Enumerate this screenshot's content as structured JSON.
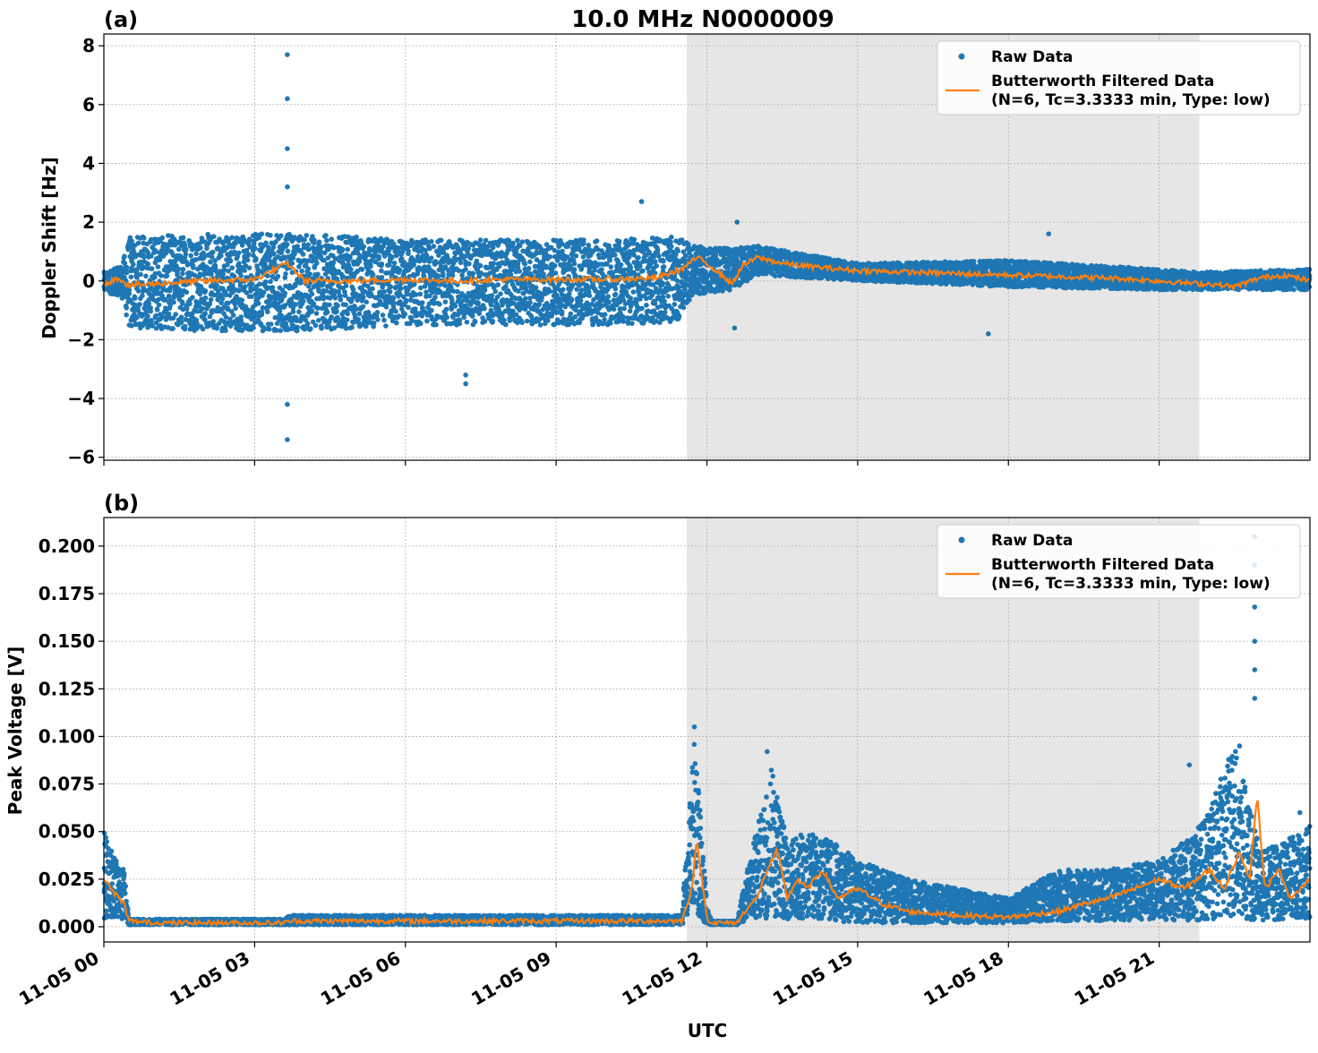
{
  "colors": {
    "raw": "#1f77b4",
    "filtered": "#ff7f0e",
    "shade": "#e6e6e6",
    "grid": "#b0b0b0"
  },
  "chart_data": [
    {
      "type": "scatter",
      "panel_label": "(a)",
      "title": "10.0 MHz N0000009",
      "ylabel": "Doppler Shift [Hz]",
      "xlabel": "",
      "x_unit": "hours UTC on 11-05",
      "xlim": [
        0,
        24
      ],
      "ylim": [
        -6.1,
        8.4
      ],
      "yticks": [
        -6,
        -4,
        -2,
        0,
        2,
        4,
        6,
        8
      ],
      "ytick_labels": [
        "−6",
        "−4",
        "−2",
        "0",
        "2",
        "4",
        "6",
        "8"
      ],
      "xticks": [
        0,
        3,
        6,
        9,
        12,
        15,
        18,
        21
      ],
      "grid": true,
      "shaded_interval": [
        11.6,
        21.8
      ],
      "legend_position": "top-right",
      "legend": [
        "Raw Data",
        "Butterworth Filtered Data",
        "(N=6, Tc=3.3333 min, Type: low)"
      ],
      "series": [
        {
          "name": "Raw Data",
          "style": "points",
          "envelope_x": [
            0,
            0.35,
            0.5,
            2,
            4,
            6,
            8,
            10,
            11.4,
            11.7,
            12.5,
            13,
            15,
            18,
            21,
            21.8,
            24
          ],
          "envelope_high": [
            0.3,
            0.5,
            1.5,
            1.6,
            1.6,
            1.4,
            1.4,
            1.4,
            1.5,
            1.2,
            1.1,
            1.2,
            0.6,
            0.7,
            0.4,
            0.3,
            0.4
          ],
          "envelope_low": [
            -0.4,
            -0.5,
            -1.6,
            -1.7,
            -1.7,
            -1.5,
            -1.5,
            -1.5,
            -1.4,
            -0.5,
            -0.3,
            0.2,
            0,
            -0.2,
            -0.3,
            -0.3,
            -0.3
          ],
          "spikes": [
            [
              3.65,
              7.7
            ],
            [
              3.65,
              6.2
            ],
            [
              3.65,
              4.5
            ],
            [
              3.65,
              3.2
            ],
            [
              3.65,
              -4.2
            ],
            [
              3.65,
              -5.4
            ],
            [
              7.2,
              -3.5
            ],
            [
              7.2,
              -3.2
            ],
            [
              12.6,
              2.0
            ],
            [
              18.8,
              1.6
            ],
            [
              17.6,
              -1.8
            ],
            [
              12.55,
              -1.6
            ],
            [
              10.7,
              2.7
            ]
          ]
        },
        {
          "name": "Butterworth Filtered Data",
          "style": "line",
          "x": [
            0,
            0.3,
            0.5,
            1,
            2,
            3,
            3.65,
            4,
            5,
            6,
            7,
            8,
            9,
            10,
            11,
            11.5,
            11.8,
            12,
            12.3,
            12.5,
            12.7,
            13,
            13.5,
            14,
            15,
            16,
            17,
            18,
            19,
            20,
            21,
            21.8,
            22,
            22.5,
            23,
            23.5,
            24
          ],
          "y": [
            -0.1,
            0.1,
            -0.15,
            -0.1,
            0,
            0.05,
            0.6,
            0,
            0,
            0.05,
            0,
            0.05,
            0.05,
            0.05,
            0.1,
            0.4,
            0.8,
            0.6,
            0.2,
            -0.1,
            0.5,
            0.8,
            0.6,
            0.5,
            0.35,
            0.3,
            0.25,
            0.2,
            0.15,
            0.1,
            0,
            -0.1,
            -0.1,
            -0.2,
            0.1,
            0.2,
            0
          ]
        }
      ]
    },
    {
      "type": "scatter",
      "panel_label": "(b)",
      "title": "",
      "ylabel": "Peak Voltage [V]",
      "xlabel": "UTC",
      "x_unit": "hours UTC on 11-05",
      "xlim": [
        0,
        24
      ],
      "ylim": [
        -0.008,
        0.215
      ],
      "yticks": [
        0,
        0.025,
        0.05,
        0.075,
        0.1,
        0.125,
        0.15,
        0.175,
        0.2
      ],
      "ytick_labels": [
        "0.000",
        "0.025",
        "0.050",
        "0.075",
        "0.100",
        "0.125",
        "0.150",
        "0.175",
        "0.200"
      ],
      "xticks": [
        0,
        3,
        6,
        9,
        12,
        15,
        18,
        21
      ],
      "xtick_labels": [
        "11-05 00",
        "11-05 03",
        "11-05 06",
        "11-05 09",
        "11-05 12",
        "11-05 15",
        "11-05 18",
        "11-05 21"
      ],
      "grid": true,
      "shaded_interval": [
        11.6,
        21.8
      ],
      "legend_position": "top-right",
      "legend": [
        "Raw Data",
        "Butterworth Filtered Data",
        "(N=6, Tc=3.3333 min, Type: low)"
      ],
      "series": [
        {
          "name": "Raw Data",
          "style": "points",
          "envelope_x": [
            0,
            0.2,
            0.4,
            0.5,
            3.6,
            3.7,
            11.5,
            11.75,
            11.85,
            12.0,
            12.1,
            12.6,
            12.8,
            13.3,
            13.6,
            14,
            14.5,
            15,
            16,
            17,
            18,
            19,
            20,
            21,
            21.5,
            22,
            22.5,
            23,
            23.5,
            24
          ],
          "envelope_high": [
            0.05,
            0.04,
            0.03,
            0.004,
            0.004,
            0.006,
            0.006,
            0.1,
            0.07,
            0.01,
            0.003,
            0.003,
            0.03,
            0.085,
            0.045,
            0.05,
            0.045,
            0.035,
            0.025,
            0.02,
            0.015,
            0.03,
            0.03,
            0.035,
            0.045,
            0.06,
            0.1,
            0.04,
            0.045,
            0.055
          ],
          "envelope_low": [
            0.004,
            0.005,
            0.004,
            0.001,
            0.001,
            0.001,
            0.001,
            0.01,
            0.005,
            0.001,
            0.001,
            0.001,
            0.003,
            0.005,
            0.004,
            0.004,
            0.003,
            0.002,
            0.002,
            0.002,
            0.002,
            0.003,
            0.003,
            0.004,
            0.003,
            0.004,
            0.004,
            0.003,
            0.004,
            0.004
          ],
          "spikes": [
            [
              22.9,
              0.205
            ],
            [
              22.9,
              0.19
            ],
            [
              22.9,
              0.168
            ],
            [
              22.9,
              0.15
            ],
            [
              22.9,
              0.135
            ],
            [
              22.9,
              0.12
            ],
            [
              11.75,
              0.105
            ],
            [
              13.2,
              0.092
            ],
            [
              22.6,
              0.095
            ],
            [
              21.6,
              0.085
            ],
            [
              23.8,
              0.06
            ]
          ]
        },
        {
          "name": "Butterworth Filtered Data",
          "style": "line",
          "x": [
            0,
            0.2,
            0.4,
            0.5,
            1,
            3.6,
            3.7,
            11.5,
            11.7,
            11.8,
            11.9,
            12.0,
            12.1,
            12.6,
            12.8,
            13,
            13.2,
            13.4,
            13.6,
            13.8,
            14,
            14.3,
            14.6,
            15,
            15.5,
            16,
            17,
            18,
            19,
            19.5,
            20,
            20.5,
            21,
            21.5,
            22,
            22.3,
            22.6,
            22.8,
            22.95,
            23.1,
            23.4,
            23.6,
            23.8,
            24
          ],
          "y": [
            0.025,
            0.018,
            0.012,
            0.003,
            0.002,
            0.002,
            0.003,
            0.003,
            0.02,
            0.045,
            0.025,
            0.005,
            0.002,
            0.002,
            0.01,
            0.015,
            0.03,
            0.04,
            0.015,
            0.025,
            0.02,
            0.03,
            0.015,
            0.02,
            0.012,
            0.008,
            0.006,
            0.005,
            0.008,
            0.012,
            0.015,
            0.02,
            0.025,
            0.02,
            0.03,
            0.02,
            0.04,
            0.025,
            0.07,
            0.02,
            0.03,
            0.015,
            0.02,
            0.025
          ]
        }
      ]
    }
  ]
}
